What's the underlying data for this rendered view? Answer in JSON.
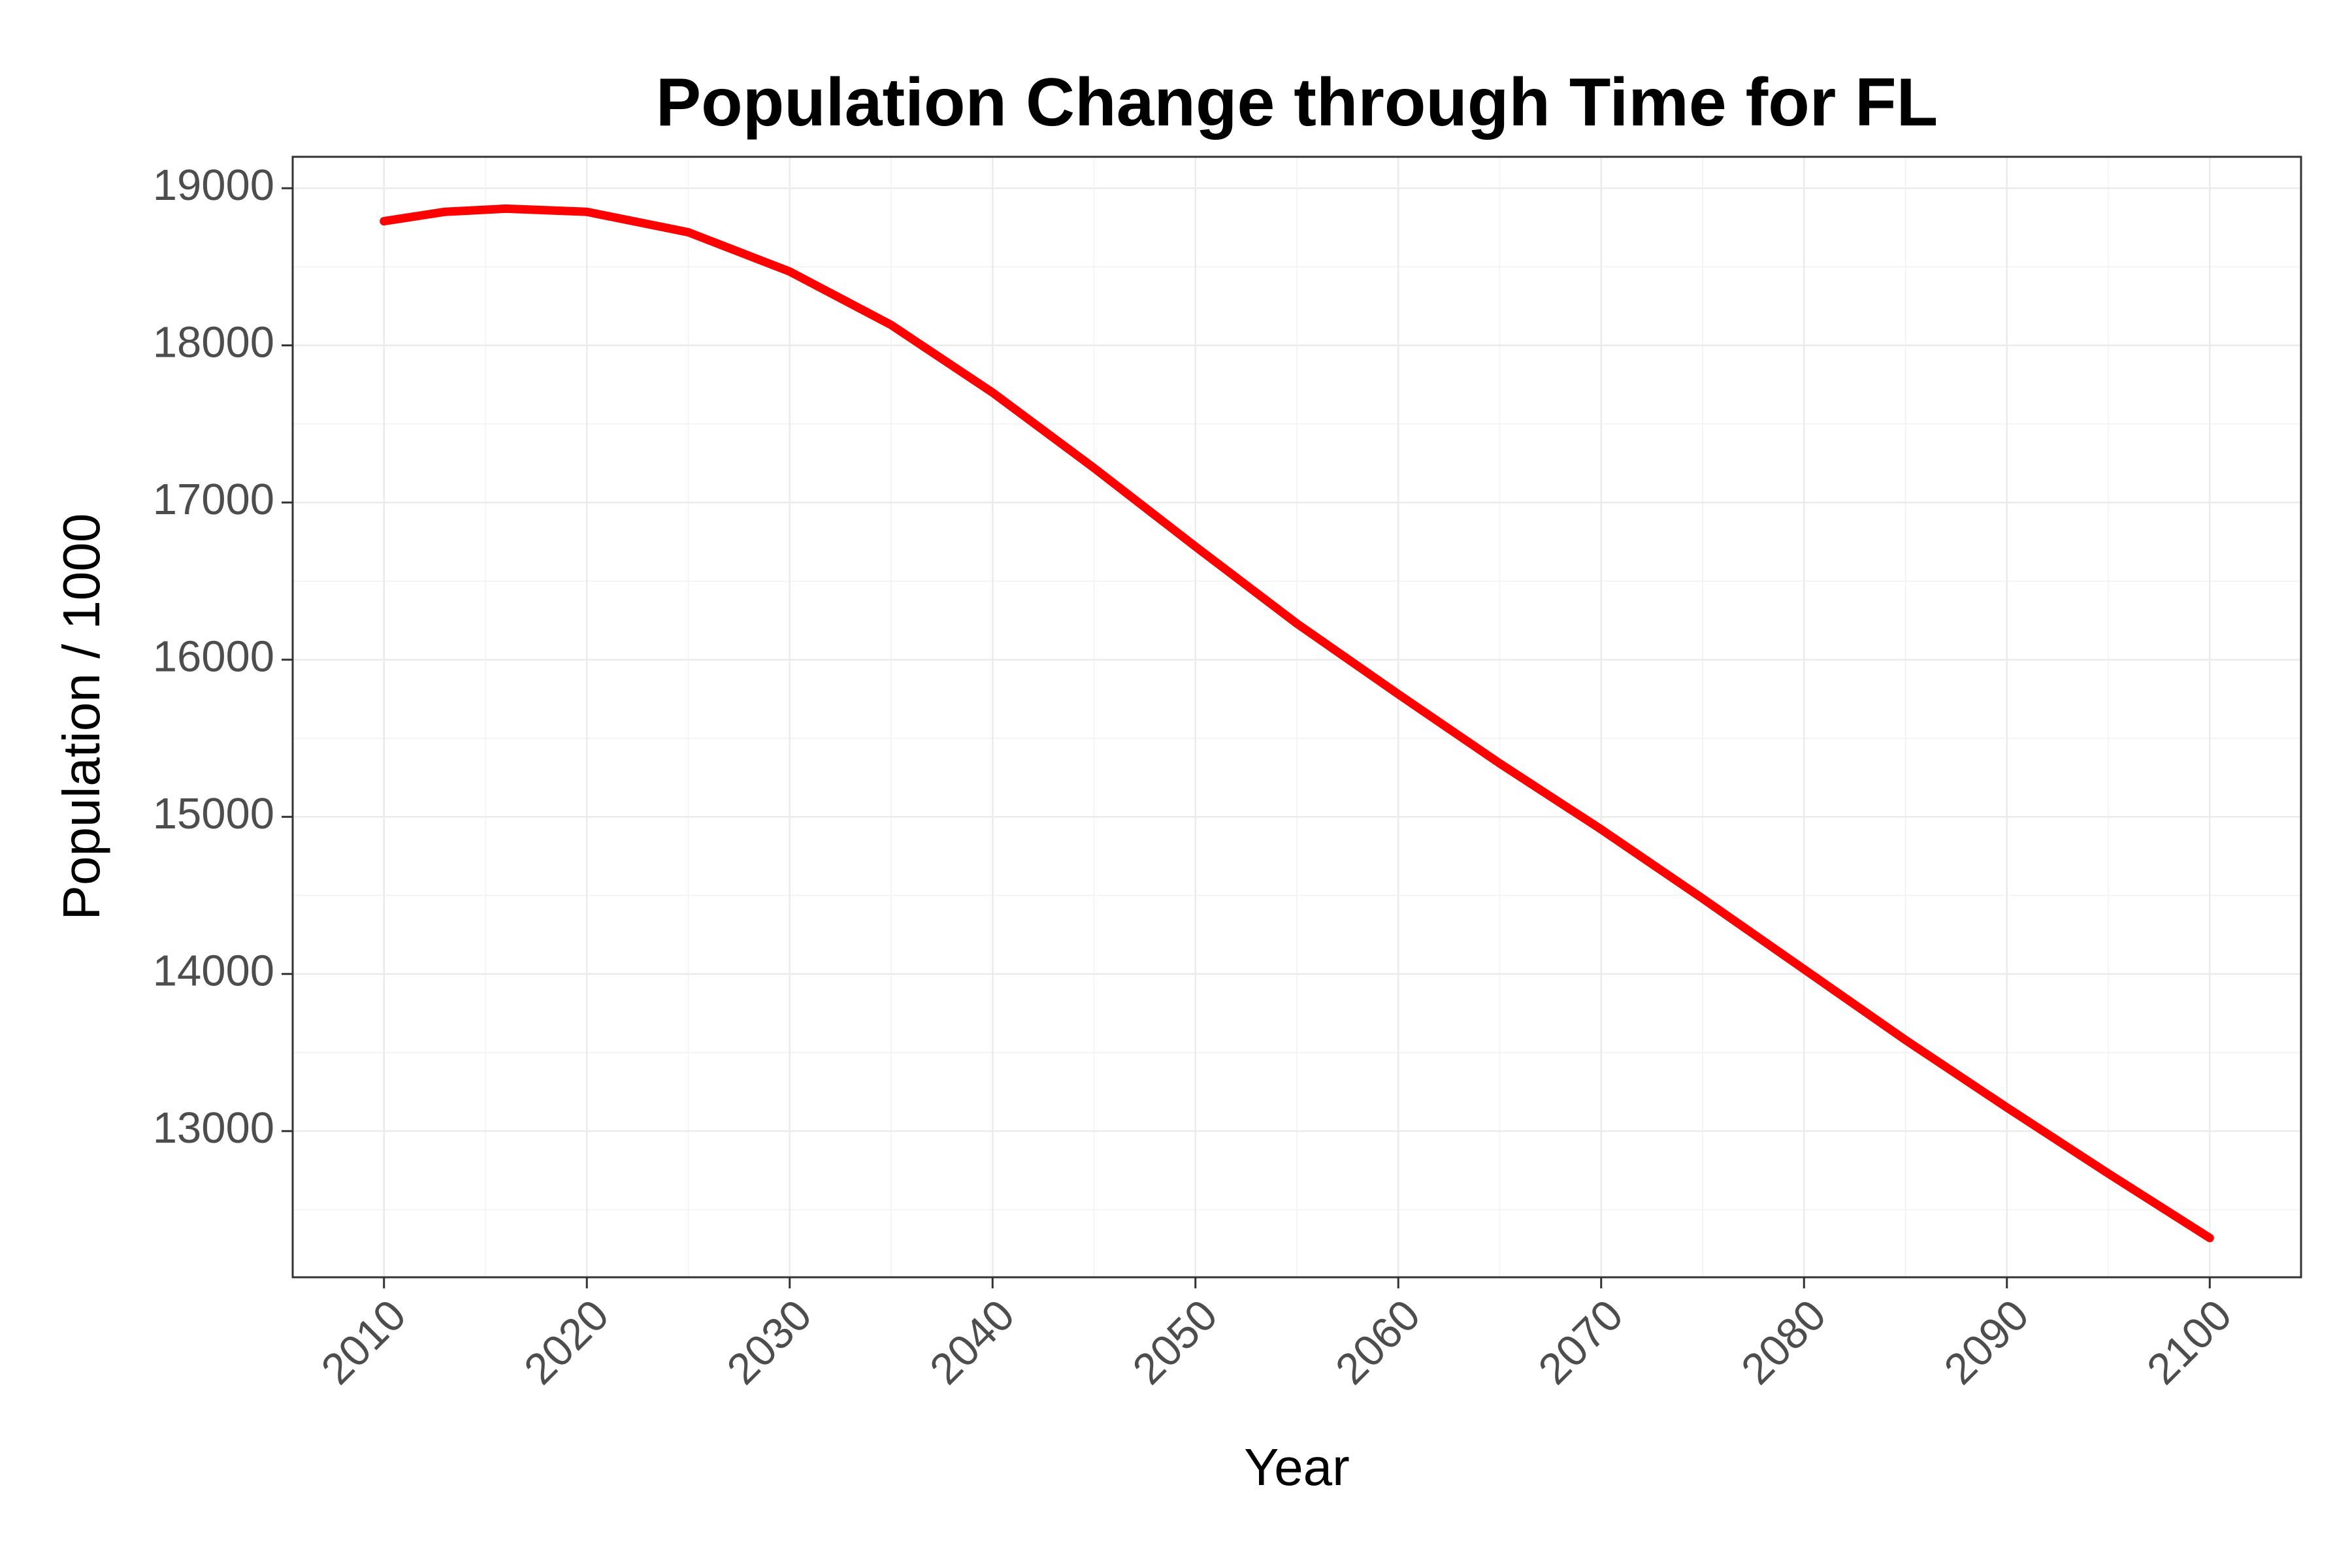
{
  "chart_data": {
    "type": "line",
    "title": "Population Change through Time for FL",
    "xlabel": "Year",
    "ylabel": "Population / 1000",
    "xlim": [
      2005.5,
      2104.5
    ],
    "ylim": [
      12070,
      19200
    ],
    "x_ticks": [
      2010,
      2020,
      2030,
      2040,
      2050,
      2060,
      2070,
      2080,
      2090,
      2100
    ],
    "y_ticks": [
      13000,
      14000,
      15000,
      16000,
      17000,
      18000,
      19000
    ],
    "grid": true,
    "legend": "none",
    "series": [
      {
        "color": "#ff0000",
        "x": [
          2010,
          2013,
          2016,
          2020,
          2025,
          2030,
          2035,
          2040,
          2045,
          2050,
          2055,
          2060,
          2065,
          2070,
          2075,
          2080,
          2085,
          2090,
          2095,
          2100
        ],
        "y": [
          18790,
          18850,
          18870,
          18850,
          18720,
          18470,
          18130,
          17700,
          17220,
          16720,
          16230,
          15780,
          15340,
          14920,
          14480,
          14030,
          13580,
          13150,
          12730,
          12320
        ]
      }
    ]
  }
}
